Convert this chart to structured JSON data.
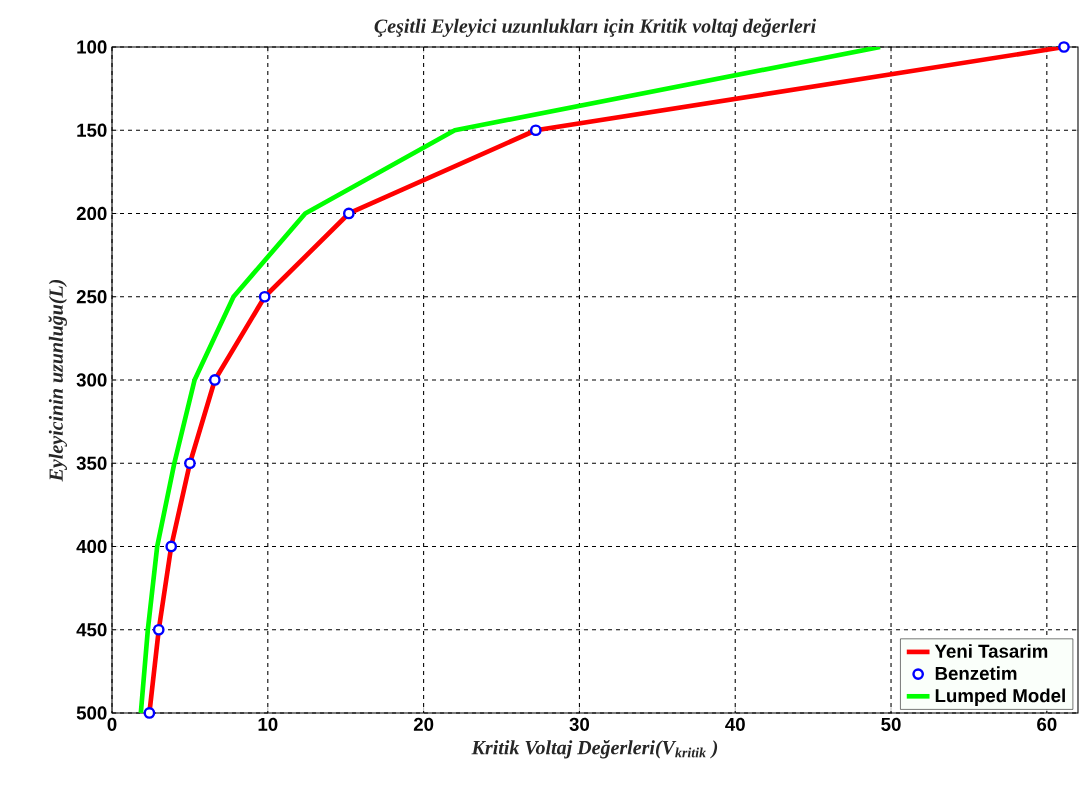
{
  "chart_data": {
    "type": "line",
    "title": "Çeşitli Eyleyici uzunlukları için Kritik voltaj  değerleri",
    "xlabel": "Kritik Voltaj Değerleri(V$_{kritik}$ )",
    "ylabel": "Eyleyicinin uzunluğu(L)",
    "xlim": [
      0,
      62
    ],
    "xticks": [
      0,
      10,
      20,
      30,
      40,
      50,
      60
    ],
    "ylim": [
      500,
      100
    ],
    "yticks": [
      100,
      150,
      200,
      250,
      300,
      350,
      400,
      450,
      500
    ],
    "grid": true,
    "legend": "bottom right",
    "line_style": "solid",
    "series": [
      {
        "name": "Yeni Tasarim",
        "marker": "none",
        "color": "#ff0000",
        "x": [
          61.1,
          27.2,
          15.2,
          9.8,
          6.6,
          5.0,
          3.8,
          3.0,
          2.4
        ],
        "values": [
          100,
          150,
          200,
          250,
          300,
          350,
          400,
          450,
          500
        ]
      },
      {
        "name": "Benzetim",
        "type": "scatter",
        "marker": "circle",
        "color": "#0000ff",
        "x": [
          61.1,
          27.2,
          15.2,
          9.8,
          6.6,
          5.0,
          3.8,
          3.0,
          2.4
        ],
        "values": [
          100,
          150,
          200,
          250,
          300,
          350,
          400,
          450,
          500
        ]
      },
      {
        "name": "Lumped Model",
        "marker": "none",
        "color": "#00ff00",
        "x": [
          49.3,
          22.0,
          12.4,
          7.8,
          5.3,
          4.0,
          2.9,
          2.3,
          1.85
        ],
        "values": [
          100,
          150,
          200,
          250,
          300,
          350,
          400,
          450,
          500
        ]
      }
    ]
  }
}
